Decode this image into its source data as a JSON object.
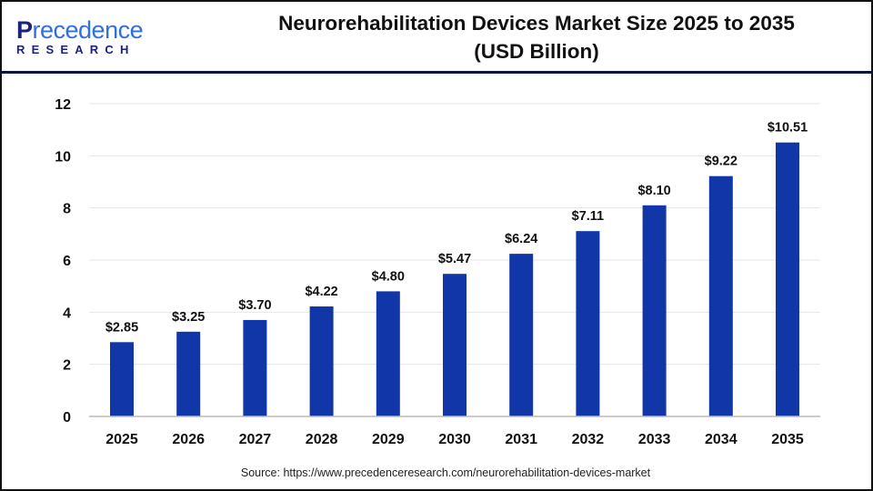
{
  "logo": {
    "line1_a": "P",
    "line1_b": "recedence",
    "line2": "RESEARCH"
  },
  "chart_data": {
    "type": "bar",
    "title": "Neurorehabilitation Devices Market Size 2025 to 2035",
    "subtitle": "(USD Billion)",
    "categories": [
      "2025",
      "2026",
      "2027",
      "2028",
      "2029",
      "2030",
      "2031",
      "2032",
      "2033",
      "2034",
      "2035"
    ],
    "values": [
      2.85,
      3.25,
      3.7,
      4.22,
      4.8,
      5.47,
      6.24,
      7.11,
      8.1,
      9.22,
      10.51
    ],
    "data_labels": [
      "$2.85",
      "$3.25",
      "$3.70",
      "$4.22",
      "$4.80",
      "$5.47",
      "$6.24",
      "$7.11",
      "$8.10",
      "$9.22",
      "$10.51"
    ],
    "yticks": [
      0,
      2,
      4,
      6,
      8,
      10,
      12
    ],
    "ylim": [
      0,
      12
    ],
    "xlabel": "",
    "ylabel": "",
    "grid": true,
    "bar_color": "#1036a8"
  },
  "source": "Source: https://www.precedenceresearch.com/neurorehabilitation-devices-market"
}
